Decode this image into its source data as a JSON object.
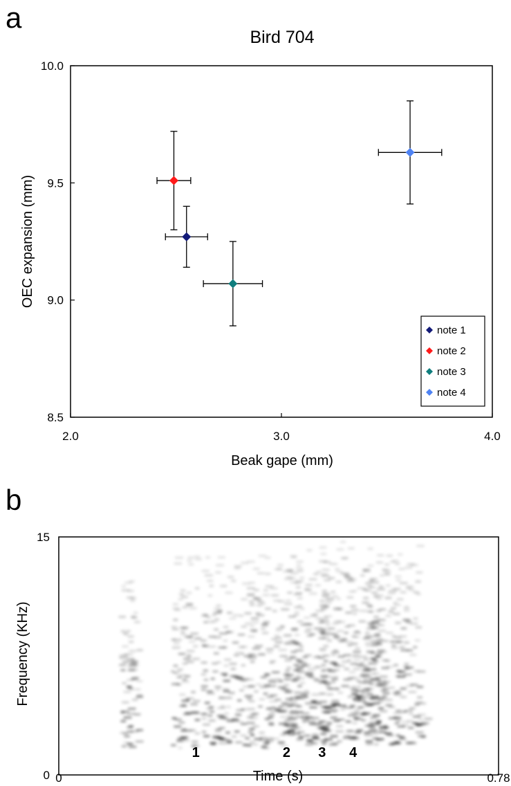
{
  "panel_a": {
    "letter": "a",
    "chart_data": {
      "type": "scatter",
      "title": "Bird 704",
      "xlabel": "Beak gape (mm)",
      "ylabel": "OEC expansion (mm)",
      "xlim": [
        2.0,
        4.0
      ],
      "ylim": [
        8.5,
        10.0
      ],
      "xticks": [
        "2.0",
        "3.0",
        "4.0"
      ],
      "yticks": [
        "8.5",
        "9.0",
        "9.5",
        "10.0"
      ],
      "grid": false,
      "legend_position": "bottom-right",
      "series": [
        {
          "name": "note 1",
          "color": "#131a78",
          "x": 2.55,
          "y": 9.27,
          "xerr": 0.1,
          "yerr": 0.13
        },
        {
          "name": "note 2",
          "color": "#ff1a1a",
          "x": 2.49,
          "y": 9.51,
          "xerr": 0.08,
          "yerr": 0.21
        },
        {
          "name": "note 3",
          "color": "#0f7d7d",
          "x": 2.77,
          "y": 9.07,
          "xerr": 0.14,
          "yerr": 0.18
        },
        {
          "name": "note 4",
          "color": "#4f83f3",
          "x": 3.61,
          "y": 9.63,
          "xerr": 0.15,
          "yerr": 0.22
        }
      ]
    }
  },
  "panel_b": {
    "letter": "b",
    "chart_data": {
      "type": "heatmap",
      "xlabel": "Time (s)",
      "ylabel": "Frequency (KHz)",
      "xlim": [
        0,
        0.78
      ],
      "ylim": [
        0,
        15
      ],
      "xticks": [
        "0",
        "0.78"
      ],
      "yticks": [
        "0",
        "15"
      ],
      "note_labels": [
        {
          "text": "1",
          "color": "#131a78",
          "t": 0.243
        },
        {
          "text": "2",
          "color": "#ff1a1a",
          "t": 0.404
        },
        {
          "text": "3",
          "color": "#0f7d7d",
          "t": 0.467
        },
        {
          "text": "4",
          "color": "#4f83f3",
          "t": 0.522
        }
      ]
    }
  }
}
